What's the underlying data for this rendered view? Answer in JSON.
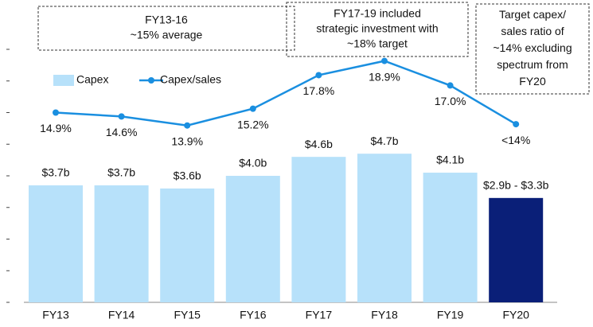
{
  "chart_data": {
    "type": "bar",
    "categories": [
      "FY13",
      "FY14",
      "FY15",
      "FY16",
      "FY17",
      "FY18",
      "FY19",
      "FY20"
    ],
    "series": [
      {
        "name": "Capex",
        "type": "bar",
        "color": "#b7e1fa",
        "highlight_color": "#0a1f78",
        "values": [
          3.7,
          3.7,
          3.6,
          4.0,
          4.6,
          4.7,
          4.1,
          3.3
        ],
        "value_labels": [
          "$3.7b",
          "$3.7b",
          "$3.6b",
          "$4.0b",
          "$4.6b",
          "$4.7b",
          "$4.1b",
          "$2.9b - $3.3b"
        ]
      },
      {
        "name": "Capex/sales",
        "type": "line",
        "axis": "y2",
        "color": "#1a8fe0",
        "values": [
          14.9,
          14.6,
          13.9,
          15.2,
          17.8,
          18.9,
          17.0,
          14
        ],
        "value_labels": [
          "14.9%",
          "14.6%",
          "13.9%",
          "15.2%",
          "17.8%",
          "18.9%",
          "17.0%",
          "<14%"
        ]
      }
    ],
    "ylim": [
      0,
      8
    ],
    "yticks": [
      0,
      1,
      2,
      3,
      4,
      5,
      6,
      7,
      8
    ],
    "y2lim": [
      0.2,
      19.8
    ],
    "annotations": [
      [
        "FY13-16",
        "~15% average"
      ],
      [
        "FY17-19 included",
        "strategic investment with",
        "~18% target"
      ],
      [
        "Target capex/",
        "sales ratio of",
        "~14% excluding",
        "spectrum from",
        "FY20"
      ]
    ]
  }
}
